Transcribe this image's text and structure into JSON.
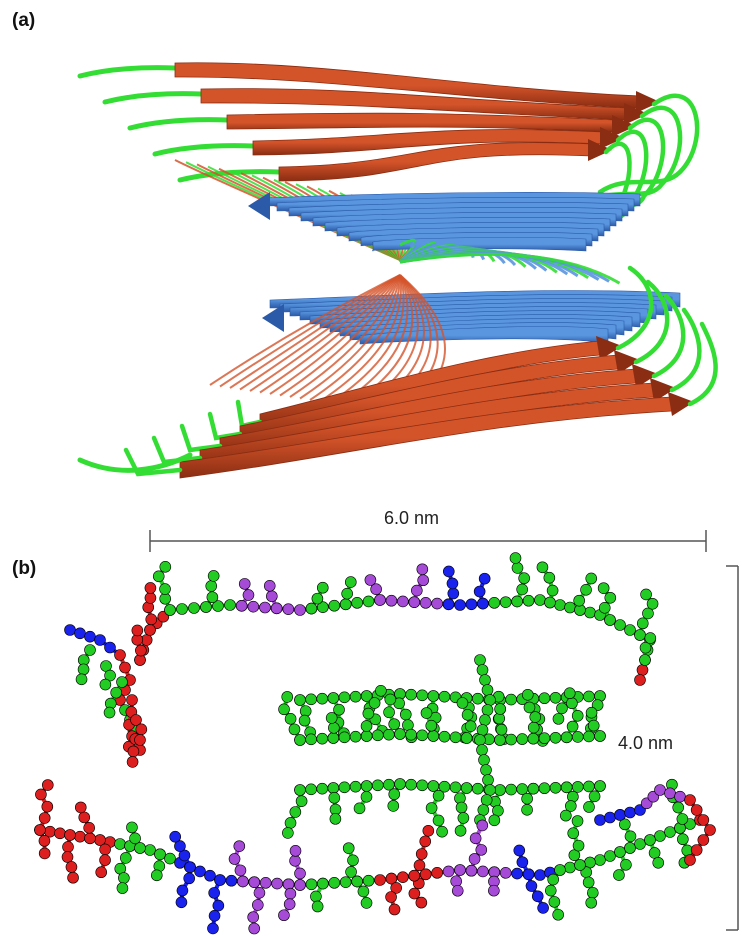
{
  "figure": {
    "panel_a_label": "(a)",
    "panel_b_label": "(b)",
    "width_label": "6.0 nm",
    "height_label": "4.0 nm",
    "colors": {
      "strand_orange": "#d4542a",
      "strand_orange_dark": "#8a2d12",
      "strand_blue": "#5a96e0",
      "strand_blue_dark": "#2a5aa8",
      "loop_green": "#33dd33",
      "atom_green": "#22cc22",
      "atom_purple": "#a64ad8",
      "atom_red": "#dd1f1f",
      "atom_blue": "#1a22ee",
      "scale_bar": "#555555"
    }
  }
}
